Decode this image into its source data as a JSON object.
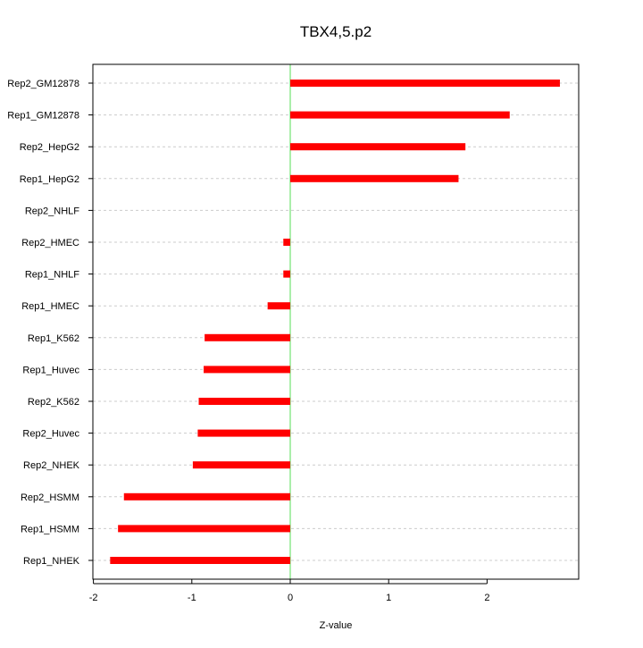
{
  "chart_data": {
    "type": "bar",
    "orientation": "horizontal",
    "title": "TBX4,5.p2",
    "xlabel": "Z-value",
    "ylabel": "",
    "xlim": [
      -2.02,
      2.93
    ],
    "xticks": [
      -2,
      -1,
      0,
      1,
      2
    ],
    "grid": true,
    "bar_color": "#ff0000",
    "zero_line_color": "#55dd55",
    "categories": [
      "Rep2_GM12878",
      "Rep1_GM12878",
      "Rep2_HepG2",
      "Rep1_HepG2",
      "Rep2_NHLF",
      "Rep2_HMEC",
      "Rep1_NHLF",
      "Rep1_HMEC",
      "Rep1_K562",
      "Rep1_Huvec",
      "Rep2_K562",
      "Rep2_Huvec",
      "Rep2_NHEK",
      "Rep2_HSMM",
      "Rep1_HSMM",
      "Rep1_NHEK"
    ],
    "values": [
      2.74,
      2.23,
      1.78,
      1.71,
      0.0,
      -0.07,
      -0.07,
      -0.23,
      -0.87,
      -0.88,
      -0.93,
      -0.94,
      -0.99,
      -1.69,
      -1.75,
      -1.83
    ]
  }
}
